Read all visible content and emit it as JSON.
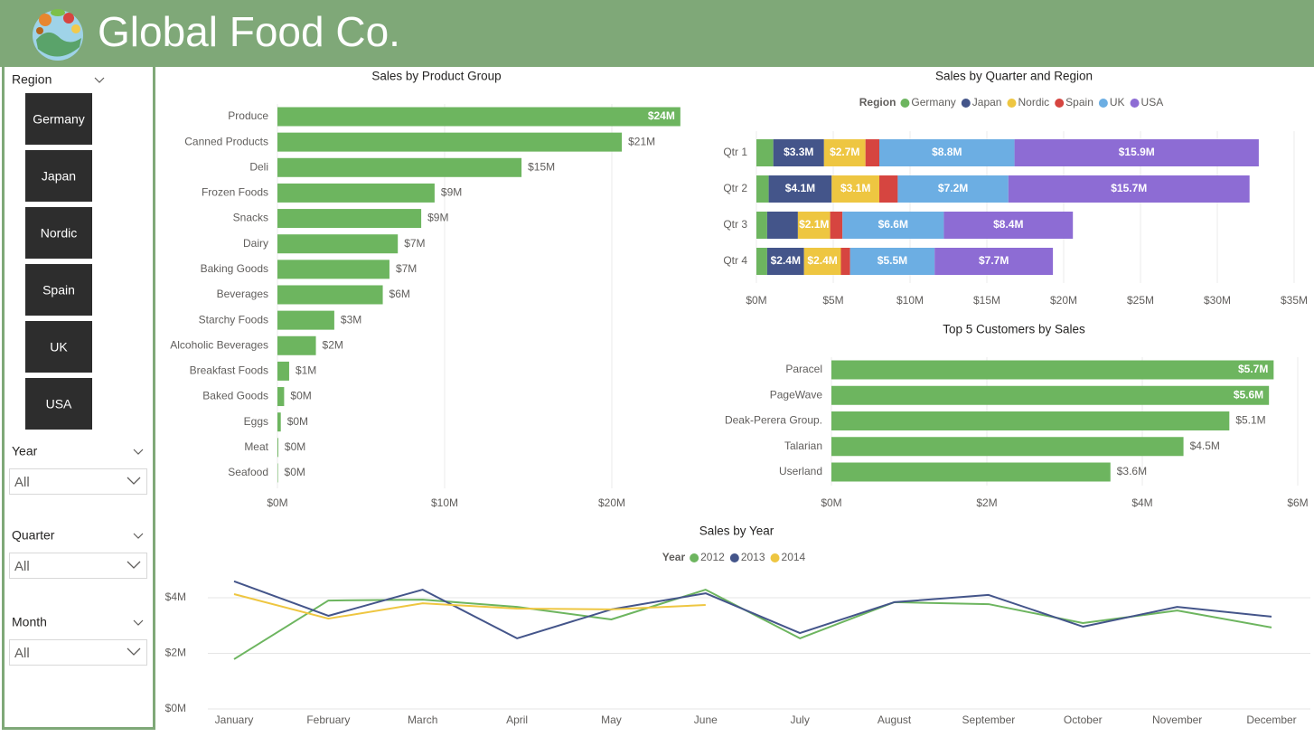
{
  "header": {
    "title": "Global Food Co."
  },
  "slicers": [
    {
      "label": "Region",
      "options": [
        "Germany",
        "Japan",
        "Nordic",
        "Spain",
        "UK",
        "USA"
      ]
    },
    {
      "label": "Year",
      "value": "All"
    },
    {
      "label": "Quarter",
      "value": "All"
    },
    {
      "label": "Month",
      "value": "All"
    }
  ],
  "chart_data": [
    {
      "type": "bar",
      "orientation": "horizontal",
      "title": "Sales by Product Group",
      "categories": [
        "Produce",
        "Canned Products",
        "Deli",
        "Frozen Foods",
        "Snacks",
        "Dairy",
        "Baking Goods",
        "Beverages",
        "Starchy Foods",
        "Alcoholic Beverages",
        "Breakfast Foods",
        "Baked Goods",
        "Eggs",
        "Meat",
        "Seafood"
      ],
      "values": [
        24.1,
        20.6,
        14.6,
        9.4,
        8.6,
        7.2,
        6.7,
        6.3,
        3.4,
        2.3,
        0.7,
        0.4,
        0.2,
        0.05,
        0.03
      ],
      "value_labels": [
        "$24M",
        "$21M",
        "$15M",
        "$9M",
        "$9M",
        "$7M",
        "$7M",
        "$6M",
        "$3M",
        "$2M",
        "$1M",
        "$0M",
        "$0M",
        "$0M",
        "$0M"
      ],
      "color": "#6db55f",
      "xlim": [
        0,
        25
      ],
      "xticks": [
        {
          "value": 0,
          "label": "$0M"
        },
        {
          "value": 10,
          "label": "$10M"
        },
        {
          "value": 20,
          "label": "$20M"
        }
      ],
      "grid": true
    },
    {
      "type": "bar",
      "orientation": "horizontal",
      "stacked": true,
      "title": "Sales by Quarter and Region",
      "legend_title": "Region",
      "categories": [
        "Qtr 1",
        "Qtr 2",
        "Qtr 3",
        "Qtr 4"
      ],
      "series": [
        {
          "name": "Germany",
          "color": "#6db55f",
          "values": [
            1.1,
            0.8,
            0.7,
            0.7
          ],
          "value_labels": [
            null,
            null,
            null,
            null
          ]
        },
        {
          "name": "Japan",
          "color": "#44558a",
          "values": [
            3.3,
            4.1,
            2.0,
            2.4
          ],
          "value_labels": [
            "$3.3M",
            "$4.1M",
            null,
            "$2.4M"
          ]
        },
        {
          "name": "Nordic",
          "color": "#eec641",
          "values": [
            2.7,
            3.1,
            2.1,
            2.4
          ],
          "value_labels": [
            "$2.7M",
            "$3.1M",
            "$2.1M",
            "$2.4M"
          ]
        },
        {
          "name": "Spain",
          "color": "#d64540",
          "values": [
            0.9,
            1.2,
            0.8,
            0.6
          ],
          "value_labels": [
            null,
            null,
            null,
            null
          ]
        },
        {
          "name": "UK",
          "color": "#6caee3",
          "values": [
            8.8,
            7.2,
            6.6,
            5.5
          ],
          "value_labels": [
            "$8.8M",
            "$7.2M",
            "$6.6M",
            "$5.5M"
          ]
        },
        {
          "name": "USA",
          "color": "#8d6cd4",
          "values": [
            15.9,
            15.7,
            8.4,
            7.7
          ],
          "value_labels": [
            "$15.9M",
            "$15.7M",
            "$8.4M",
            "$7.7M"
          ]
        }
      ],
      "xlim": [
        0,
        35
      ],
      "xticks": [
        {
          "value": 0,
          "label": "$0M"
        },
        {
          "value": 5,
          "label": "$5M"
        },
        {
          "value": 10,
          "label": "$10M"
        },
        {
          "value": 15,
          "label": "$15M"
        },
        {
          "value": 20,
          "label": "$20M"
        },
        {
          "value": 25,
          "label": "$25M"
        },
        {
          "value": 30,
          "label": "$30M"
        },
        {
          "value": 35,
          "label": "$35M"
        }
      ],
      "grid": true
    },
    {
      "type": "bar",
      "orientation": "horizontal",
      "title": "Top 5 Customers by Sales",
      "categories": [
        "Paracel",
        "PageWave",
        "Deak-Perera Group.",
        "Talarian",
        "Userland"
      ],
      "values": [
        5.69,
        5.63,
        5.12,
        4.53,
        3.59
      ],
      "value_labels": [
        "$5.7M",
        "$5.6M",
        "$5.1M",
        "$4.5M",
        "$3.6M"
      ],
      "color": "#6db55f",
      "xlim": [
        0,
        6
      ],
      "xticks": [
        {
          "value": 0,
          "label": "$0M"
        },
        {
          "value": 2,
          "label": "$2M"
        },
        {
          "value": 4,
          "label": "$4M"
        },
        {
          "value": 6,
          "label": "$6M"
        }
      ],
      "grid": true
    },
    {
      "type": "line",
      "title": "Sales by Year",
      "legend_title": "Year",
      "categories": [
        "January",
        "February",
        "March",
        "April",
        "May",
        "June",
        "July",
        "August",
        "September",
        "October",
        "November",
        "December"
      ],
      "series": [
        {
          "name": "2012",
          "color": "#6db55f",
          "values": [
            1.79,
            3.9,
            3.93,
            3.67,
            3.22,
            4.29,
            2.54,
            3.84,
            3.77,
            3.09,
            3.54,
            2.93
          ]
        },
        {
          "name": "2013",
          "color": "#44558a",
          "values": [
            4.59,
            3.35,
            4.29,
            2.54,
            3.58,
            4.16,
            2.73,
            3.84,
            4.1,
            2.96,
            3.67,
            3.32
          ]
        },
        {
          "name": "2014",
          "color": "#eec641",
          "values": [
            4.13,
            3.25,
            3.8,
            3.61,
            3.58,
            3.74,
            null,
            null,
            null,
            null,
            null,
            null
          ]
        }
      ],
      "ylim": [
        0,
        4.8
      ],
      "yticks": [
        {
          "value": 0,
          "label": "$0M"
        },
        {
          "value": 2,
          "label": "$2M"
        },
        {
          "value": 4,
          "label": "$4M"
        }
      ],
      "grid": true
    }
  ]
}
